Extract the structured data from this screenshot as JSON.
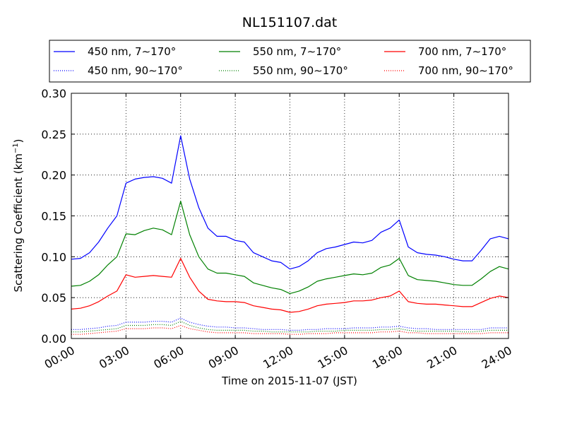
{
  "chart_data": {
    "type": "line",
    "title": "NL151107.dat",
    "xlabel": "Time on 2015-11-07 (JST)",
    "ylabel_main": "Scattering Coefficient (km",
    "ylabel_sup": "−1",
    "ylabel_close": ")",
    "ylim": [
      0,
      0.3
    ],
    "xlim_hours": [
      0,
      24
    ],
    "x_ticks": [
      "00:00",
      "03:00",
      "06:00",
      "09:00",
      "12:00",
      "15:00",
      "18:00",
      "21:00",
      "24:00"
    ],
    "y_ticks": [
      "0.00",
      "0.05",
      "0.10",
      "0.15",
      "0.20",
      "0.25",
      "0.30"
    ],
    "grid": true,
    "legend_position": "top",
    "x_hours": [
      0,
      0.5,
      1,
      1.5,
      2,
      2.5,
      3,
      3.5,
      4,
      4.5,
      5,
      5.5,
      6,
      6.5,
      7,
      7.5,
      8,
      8.5,
      9,
      9.5,
      10,
      10.5,
      11,
      11.5,
      12,
      12.5,
      13,
      13.5,
      14,
      14.5,
      15,
      15.5,
      16,
      16.5,
      17,
      17.5,
      18,
      18.5,
      19,
      19.5,
      20,
      20.5,
      21,
      21.5,
      22,
      22.5,
      23,
      23.5,
      24
    ],
    "series": [
      {
        "name": "450 nm, 7∼170°",
        "color": "#0000ff",
        "style": "solid",
        "values": [
          0.097,
          0.098,
          0.105,
          0.118,
          0.135,
          0.15,
          0.19,
          0.195,
          0.197,
          0.198,
          0.196,
          0.19,
          0.248,
          0.195,
          0.16,
          0.135,
          0.125,
          0.125,
          0.12,
          0.118,
          0.105,
          0.1,
          0.095,
          0.093,
          0.085,
          0.088,
          0.095,
          0.105,
          0.11,
          0.112,
          0.115,
          0.118,
          0.117,
          0.12,
          0.13,
          0.135,
          0.145,
          0.112,
          0.105,
          0.103,
          0.102,
          0.1,
          0.097,
          0.095,
          0.095,
          0.108,
          0.122,
          0.125,
          0.122
        ]
      },
      {
        "name": "550 nm, 7∼170°",
        "color": "#008000",
        "style": "solid",
        "values": [
          0.064,
          0.065,
          0.07,
          0.078,
          0.09,
          0.1,
          0.128,
          0.127,
          0.132,
          0.135,
          0.133,
          0.127,
          0.168,
          0.127,
          0.1,
          0.085,
          0.08,
          0.08,
          0.078,
          0.076,
          0.068,
          0.065,
          0.062,
          0.06,
          0.055,
          0.058,
          0.063,
          0.07,
          0.073,
          0.075,
          0.077,
          0.079,
          0.078,
          0.08,
          0.087,
          0.09,
          0.098,
          0.077,
          0.072,
          0.071,
          0.07,
          0.068,
          0.066,
          0.065,
          0.065,
          0.073,
          0.082,
          0.088,
          0.085
        ]
      },
      {
        "name": "700 nm, 7∼170°",
        "color": "#ff0000",
        "style": "solid",
        "values": [
          0.036,
          0.037,
          0.04,
          0.045,
          0.052,
          0.058,
          0.078,
          0.075,
          0.076,
          0.077,
          0.076,
          0.075,
          0.098,
          0.075,
          0.058,
          0.048,
          0.046,
          0.045,
          0.045,
          0.044,
          0.04,
          0.038,
          0.036,
          0.035,
          0.032,
          0.033,
          0.036,
          0.04,
          0.042,
          0.043,
          0.044,
          0.046,
          0.046,
          0.047,
          0.05,
          0.052,
          0.058,
          0.045,
          0.043,
          0.042,
          0.042,
          0.041,
          0.04,
          0.039,
          0.039,
          0.044,
          0.049,
          0.052,
          0.05
        ]
      },
      {
        "name": "450 nm, 90∼170°",
        "color": "#0000ff",
        "style": "dotted",
        "values": [
          0.011,
          0.011,
          0.012,
          0.013,
          0.015,
          0.016,
          0.02,
          0.02,
          0.02,
          0.021,
          0.021,
          0.02,
          0.025,
          0.02,
          0.017,
          0.015,
          0.014,
          0.014,
          0.013,
          0.013,
          0.012,
          0.011,
          0.011,
          0.011,
          0.01,
          0.01,
          0.011,
          0.011,
          0.012,
          0.012,
          0.012,
          0.013,
          0.013,
          0.013,
          0.014,
          0.014,
          0.015,
          0.013,
          0.012,
          0.012,
          0.011,
          0.011,
          0.011,
          0.011,
          0.011,
          0.011,
          0.013,
          0.013,
          0.013
        ]
      },
      {
        "name": "550 nm, 90∼170°",
        "color": "#008000",
        "style": "dotted",
        "values": [
          0.008,
          0.008,
          0.009,
          0.01,
          0.011,
          0.012,
          0.016,
          0.016,
          0.016,
          0.017,
          0.017,
          0.016,
          0.021,
          0.016,
          0.013,
          0.011,
          0.01,
          0.01,
          0.01,
          0.01,
          0.009,
          0.009,
          0.008,
          0.008,
          0.008,
          0.008,
          0.008,
          0.009,
          0.009,
          0.009,
          0.01,
          0.01,
          0.01,
          0.01,
          0.011,
          0.011,
          0.012,
          0.01,
          0.009,
          0.009,
          0.009,
          0.009,
          0.009,
          0.008,
          0.008,
          0.009,
          0.01,
          0.01,
          0.01
        ]
      },
      {
        "name": "700 nm, 90∼170°",
        "color": "#ff0000",
        "style": "dotted",
        "values": [
          0.005,
          0.005,
          0.006,
          0.007,
          0.008,
          0.009,
          0.012,
          0.012,
          0.012,
          0.013,
          0.013,
          0.012,
          0.016,
          0.012,
          0.01,
          0.008,
          0.007,
          0.007,
          0.007,
          0.007,
          0.006,
          0.006,
          0.006,
          0.006,
          0.005,
          0.005,
          0.006,
          0.006,
          0.006,
          0.007,
          0.007,
          0.007,
          0.007,
          0.007,
          0.008,
          0.008,
          0.009,
          0.007,
          0.007,
          0.006,
          0.006,
          0.006,
          0.006,
          0.006,
          0.006,
          0.006,
          0.007,
          0.007,
          0.007
        ]
      }
    ]
  }
}
